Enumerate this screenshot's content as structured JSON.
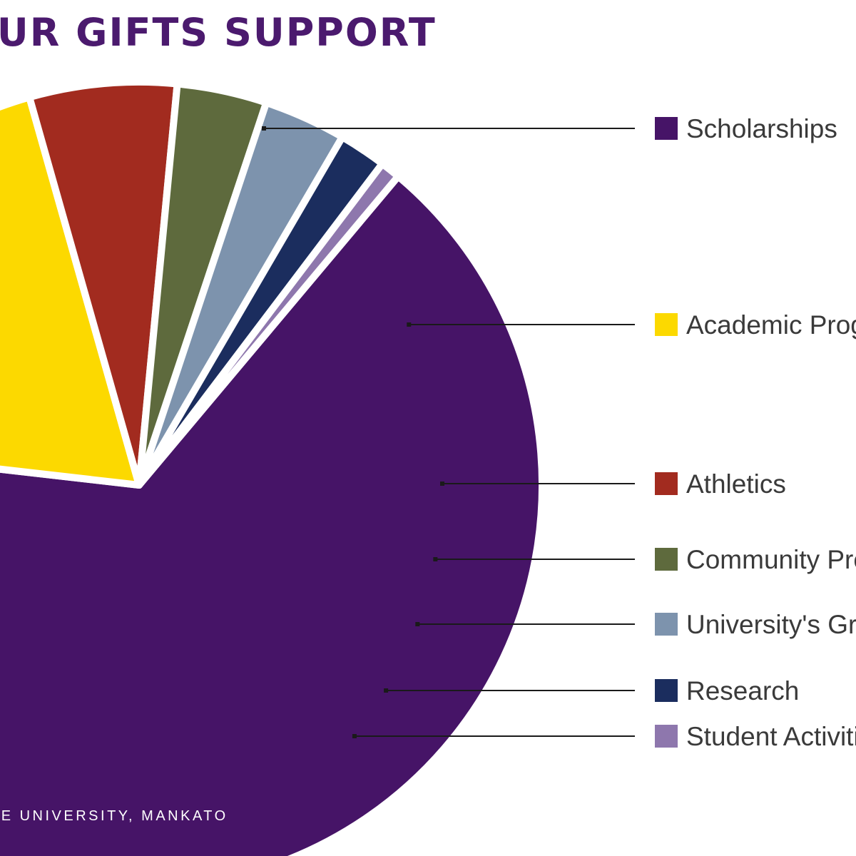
{
  "title": "OUR GIFTS SUPPORT",
  "footer": "TE UNIVERSITY, MANKATO",
  "chart_data": {
    "type": "pie",
    "title": "OUR GIFTS SUPPORT",
    "series": [
      {
        "name": "Scholarships",
        "value": 65.7,
        "color": "#461467"
      },
      {
        "name": "Academic Prog",
        "value": 18.8,
        "color": "#fcd900"
      },
      {
        "name": "Athletics",
        "value": 5.9,
        "color": "#a22b1f"
      },
      {
        "name": "Community Pro",
        "value": 3.6,
        "color": "#5e6a3d"
      },
      {
        "name": "University's Gre",
        "value": 3.3,
        "color": "#7d93ad"
      },
      {
        "name": "Research",
        "value": 1.9,
        "color": "#1b2d5e"
      },
      {
        "name": "Student Activitie",
        "value": 0.8,
        "color": "#8e77ad"
      }
    ],
    "legend_position": "right",
    "colors": {
      "title": "#4b1a6e",
      "label_text": "#3a3a3a",
      "leader": "#1a1a1a"
    }
  }
}
